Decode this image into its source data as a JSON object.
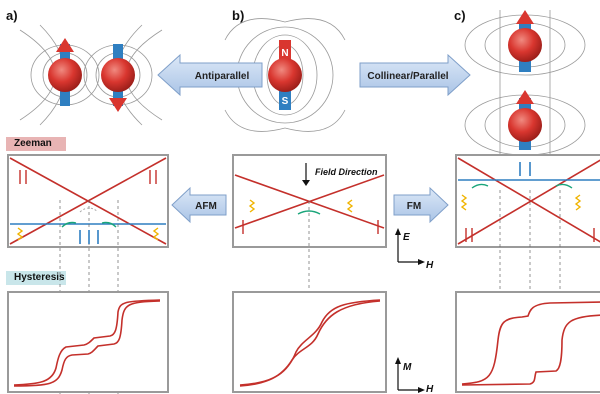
{
  "panel_labels": {
    "a": "a)",
    "b": "b)",
    "c": "c)"
  },
  "magnet_poles": {
    "north": "N",
    "south": "S"
  },
  "arrows": {
    "antiparallel": "Antiparallel",
    "collinear": "Collinear/Parallel",
    "afm": "AFM",
    "fm": "FM"
  },
  "sections": {
    "zeeman": "Zeeman",
    "hysteresis": "Hysteresis"
  },
  "zeeman_center": {
    "field_direction": "Field Direction"
  },
  "axes": {
    "energy": "E",
    "field": "H",
    "magnetization": "M"
  },
  "colors": {
    "magnet_red": "#d9362f",
    "level_red": "#c4302b",
    "level_blue": "#2f7fc1",
    "arrow_fill": "#c6d9f1",
    "arrow_stroke": "#7f9fc9",
    "zeeman_tag": "#e8b4b4",
    "hysteresis_tag": "#c9e6ea",
    "photon": "#f0b400",
    "transition": "#1aa57a",
    "panel_border": "#9a9a9a"
  }
}
